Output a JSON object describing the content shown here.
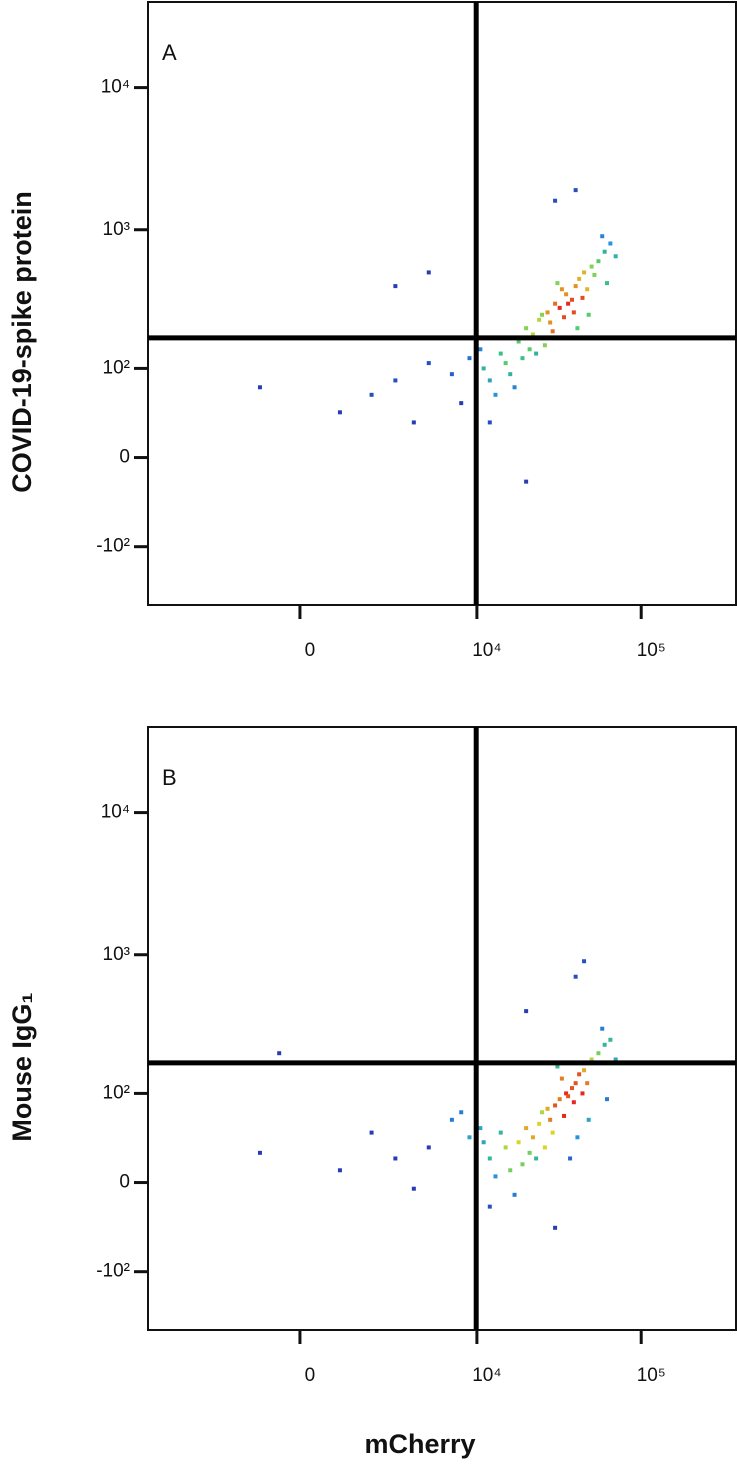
{
  "chart_data": [
    {
      "type": "scatter",
      "panel_label": "A",
      "ylabel": "COVID-19-spike protein",
      "scale": "biexponential",
      "xlim": [
        -7000,
        376000
      ],
      "ylim": [
        -270,
        40000
      ],
      "xticks": [
        {
          "value": 0,
          "label": "0"
        },
        {
          "value": 10000,
          "label": "10⁴"
        },
        {
          "value": 100000,
          "label": "10⁵"
        }
      ],
      "yticks": [
        {
          "value": -100,
          "label": "-10²"
        },
        {
          "value": 0,
          "label": "0"
        },
        {
          "value": 100,
          "label": "10²"
        },
        {
          "value": 1000,
          "label": "10³"
        },
        {
          "value": 10000,
          "label": "10⁴"
        }
      ],
      "gates": {
        "x": 9900,
        "y": 170
      },
      "x": [
        30000,
        35000,
        25000,
        40000,
        28000,
        45000,
        20000,
        32000,
        38000,
        22000,
        50000,
        27000,
        33000,
        18000,
        42000,
        24000,
        36000,
        29000,
        55000,
        31000,
        26000,
        47000,
        21000,
        39000,
        60000,
        34000,
        23000,
        44000,
        19000,
        52000,
        15000,
        16000,
        12000,
        14000,
        17000,
        13000,
        11000,
        65000,
        70000,
        58000,
        48000,
        41000,
        37000,
        62000,
        10500,
        9000,
        7000,
        5000,
        3000,
        2000,
        -1000,
        1000,
        4000,
        8000,
        30000,
        40000,
        5000,
        3000,
        20000,
        12000
      ],
      "y": [
        300,
        350,
        250,
        400,
        220,
        500,
        200,
        280,
        320,
        180,
        550,
        260,
        380,
        160,
        450,
        230,
        300,
        190,
        600,
        420,
        150,
        380,
        140,
        260,
        700,
        240,
        130,
        330,
        120,
        480,
        110,
        90,
        80,
        130,
        70,
        60,
        100,
        800,
        650,
        900,
        250,
        200,
        170,
        420,
        140,
        120,
        90,
        110,
        80,
        60,
        70,
        40,
        30,
        50,
        1600,
        1900,
        500,
        400,
        -20,
        30
      ]
    },
    {
      "type": "scatter",
      "panel_label": "B",
      "ylabel": "Mouse IgG₁",
      "xlabel": "mCherry",
      "scale": "biexponential",
      "xlim": [
        -7000,
        376000
      ],
      "ylim": [
        -270,
        40000
      ],
      "xticks": [
        {
          "value": 0,
          "label": "0"
        },
        {
          "value": 10000,
          "label": "10⁴"
        },
        {
          "value": 100000,
          "label": "10⁵"
        }
      ],
      "yticks": [
        {
          "value": -100,
          "label": "-10²"
        },
        {
          "value": 0,
          "label": "0"
        },
        {
          "value": 100,
          "label": "10²"
        },
        {
          "value": 1000,
          "label": "10³"
        },
        {
          "value": 10000,
          "label": "10⁴"
        }
      ],
      "gates": {
        "x": 9900,
        "y": 170
      },
      "x": [
        30000,
        35000,
        25000,
        40000,
        28000,
        45000,
        20000,
        32000,
        38000,
        22000,
        50000,
        27000,
        33000,
        18000,
        42000,
        24000,
        36000,
        29000,
        55000,
        31000,
        26000,
        47000,
        21000,
        39000,
        60000,
        34000,
        23000,
        44000,
        19000,
        52000,
        15000,
        16000,
        12000,
        14000,
        17000,
        13000,
        11000,
        65000,
        70000,
        58000,
        48000,
        41000,
        37000,
        62000,
        10500,
        9000,
        7000,
        5000,
        3000,
        2000,
        -1000,
        1000,
        4000,
        8000,
        40000,
        45000,
        20000,
        -500,
        30000,
        12000
      ],
      "y": [
        80,
        100,
        70,
        120,
        60,
        150,
        50,
        90,
        110,
        40,
        180,
        75,
        130,
        35,
        140,
        55,
        95,
        45,
        200,
        160,
        30,
        120,
        25,
        85,
        230,
        65,
        20,
        100,
        15,
        170,
        30,
        10,
        20,
        45,
        -10,
        5,
        35,
        250,
        180,
        300,
        60,
        40,
        20,
        90,
        50,
        40,
        60,
        30,
        20,
        45,
        25,
        10,
        -5,
        70,
        700,
        900,
        400,
        200,
        -40,
        -20
      ]
    }
  ]
}
